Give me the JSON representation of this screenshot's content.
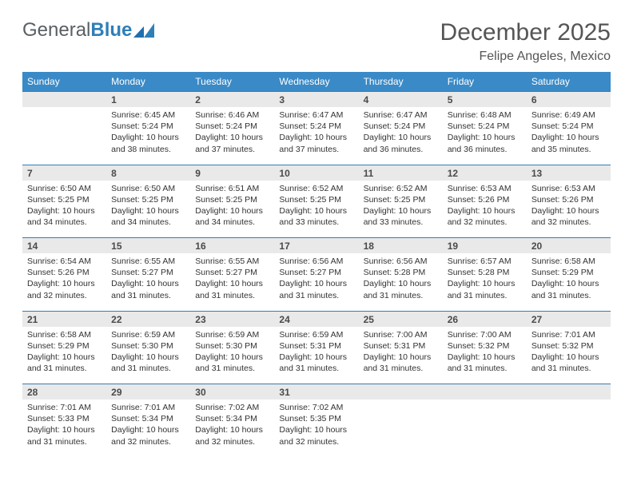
{
  "logo": {
    "text1": "General",
    "text2": "Blue"
  },
  "title": "December 2025",
  "subtitle": "Felipe Angeles, Mexico",
  "colors": {
    "header_bg": "#3a8ac7",
    "header_fg": "#ffffff",
    "date_bg": "#e9e9e9",
    "border": "#2f7fb8"
  },
  "day_headers": [
    "Sunday",
    "Monday",
    "Tuesday",
    "Wednesday",
    "Thursday",
    "Friday",
    "Saturday"
  ],
  "weeks": [
    [
      {
        "date": "",
        "sunrise": "",
        "sunset": "",
        "daylight": ""
      },
      {
        "date": "1",
        "sunrise": "Sunrise: 6:45 AM",
        "sunset": "Sunset: 5:24 PM",
        "daylight": "Daylight: 10 hours and 38 minutes."
      },
      {
        "date": "2",
        "sunrise": "Sunrise: 6:46 AM",
        "sunset": "Sunset: 5:24 PM",
        "daylight": "Daylight: 10 hours and 37 minutes."
      },
      {
        "date": "3",
        "sunrise": "Sunrise: 6:47 AM",
        "sunset": "Sunset: 5:24 PM",
        "daylight": "Daylight: 10 hours and 37 minutes."
      },
      {
        "date": "4",
        "sunrise": "Sunrise: 6:47 AM",
        "sunset": "Sunset: 5:24 PM",
        "daylight": "Daylight: 10 hours and 36 minutes."
      },
      {
        "date": "5",
        "sunrise": "Sunrise: 6:48 AM",
        "sunset": "Sunset: 5:24 PM",
        "daylight": "Daylight: 10 hours and 36 minutes."
      },
      {
        "date": "6",
        "sunrise": "Sunrise: 6:49 AM",
        "sunset": "Sunset: 5:24 PM",
        "daylight": "Daylight: 10 hours and 35 minutes."
      }
    ],
    [
      {
        "date": "7",
        "sunrise": "Sunrise: 6:50 AM",
        "sunset": "Sunset: 5:25 PM",
        "daylight": "Daylight: 10 hours and 34 minutes."
      },
      {
        "date": "8",
        "sunrise": "Sunrise: 6:50 AM",
        "sunset": "Sunset: 5:25 PM",
        "daylight": "Daylight: 10 hours and 34 minutes."
      },
      {
        "date": "9",
        "sunrise": "Sunrise: 6:51 AM",
        "sunset": "Sunset: 5:25 PM",
        "daylight": "Daylight: 10 hours and 34 minutes."
      },
      {
        "date": "10",
        "sunrise": "Sunrise: 6:52 AM",
        "sunset": "Sunset: 5:25 PM",
        "daylight": "Daylight: 10 hours and 33 minutes."
      },
      {
        "date": "11",
        "sunrise": "Sunrise: 6:52 AM",
        "sunset": "Sunset: 5:25 PM",
        "daylight": "Daylight: 10 hours and 33 minutes."
      },
      {
        "date": "12",
        "sunrise": "Sunrise: 6:53 AM",
        "sunset": "Sunset: 5:26 PM",
        "daylight": "Daylight: 10 hours and 32 minutes."
      },
      {
        "date": "13",
        "sunrise": "Sunrise: 6:53 AM",
        "sunset": "Sunset: 5:26 PM",
        "daylight": "Daylight: 10 hours and 32 minutes."
      }
    ],
    [
      {
        "date": "14",
        "sunrise": "Sunrise: 6:54 AM",
        "sunset": "Sunset: 5:26 PM",
        "daylight": "Daylight: 10 hours and 32 minutes."
      },
      {
        "date": "15",
        "sunrise": "Sunrise: 6:55 AM",
        "sunset": "Sunset: 5:27 PM",
        "daylight": "Daylight: 10 hours and 31 minutes."
      },
      {
        "date": "16",
        "sunrise": "Sunrise: 6:55 AM",
        "sunset": "Sunset: 5:27 PM",
        "daylight": "Daylight: 10 hours and 31 minutes."
      },
      {
        "date": "17",
        "sunrise": "Sunrise: 6:56 AM",
        "sunset": "Sunset: 5:27 PM",
        "daylight": "Daylight: 10 hours and 31 minutes."
      },
      {
        "date": "18",
        "sunrise": "Sunrise: 6:56 AM",
        "sunset": "Sunset: 5:28 PM",
        "daylight": "Daylight: 10 hours and 31 minutes."
      },
      {
        "date": "19",
        "sunrise": "Sunrise: 6:57 AM",
        "sunset": "Sunset: 5:28 PM",
        "daylight": "Daylight: 10 hours and 31 minutes."
      },
      {
        "date": "20",
        "sunrise": "Sunrise: 6:58 AM",
        "sunset": "Sunset: 5:29 PM",
        "daylight": "Daylight: 10 hours and 31 minutes."
      }
    ],
    [
      {
        "date": "21",
        "sunrise": "Sunrise: 6:58 AM",
        "sunset": "Sunset: 5:29 PM",
        "daylight": "Daylight: 10 hours and 31 minutes."
      },
      {
        "date": "22",
        "sunrise": "Sunrise: 6:59 AM",
        "sunset": "Sunset: 5:30 PM",
        "daylight": "Daylight: 10 hours and 31 minutes."
      },
      {
        "date": "23",
        "sunrise": "Sunrise: 6:59 AM",
        "sunset": "Sunset: 5:30 PM",
        "daylight": "Daylight: 10 hours and 31 minutes."
      },
      {
        "date": "24",
        "sunrise": "Sunrise: 6:59 AM",
        "sunset": "Sunset: 5:31 PM",
        "daylight": "Daylight: 10 hours and 31 minutes."
      },
      {
        "date": "25",
        "sunrise": "Sunrise: 7:00 AM",
        "sunset": "Sunset: 5:31 PM",
        "daylight": "Daylight: 10 hours and 31 minutes."
      },
      {
        "date": "26",
        "sunrise": "Sunrise: 7:00 AM",
        "sunset": "Sunset: 5:32 PM",
        "daylight": "Daylight: 10 hours and 31 minutes."
      },
      {
        "date": "27",
        "sunrise": "Sunrise: 7:01 AM",
        "sunset": "Sunset: 5:32 PM",
        "daylight": "Daylight: 10 hours and 31 minutes."
      }
    ],
    [
      {
        "date": "28",
        "sunrise": "Sunrise: 7:01 AM",
        "sunset": "Sunset: 5:33 PM",
        "daylight": "Daylight: 10 hours and 31 minutes."
      },
      {
        "date": "29",
        "sunrise": "Sunrise: 7:01 AM",
        "sunset": "Sunset: 5:34 PM",
        "daylight": "Daylight: 10 hours and 32 minutes."
      },
      {
        "date": "30",
        "sunrise": "Sunrise: 7:02 AM",
        "sunset": "Sunset: 5:34 PM",
        "daylight": "Daylight: 10 hours and 32 minutes."
      },
      {
        "date": "31",
        "sunrise": "Sunrise: 7:02 AM",
        "sunset": "Sunset: 5:35 PM",
        "daylight": "Daylight: 10 hours and 32 minutes."
      },
      {
        "date": "",
        "sunrise": "",
        "sunset": "",
        "daylight": ""
      },
      {
        "date": "",
        "sunrise": "",
        "sunset": "",
        "daylight": ""
      },
      {
        "date": "",
        "sunrise": "",
        "sunset": "",
        "daylight": ""
      }
    ]
  ]
}
